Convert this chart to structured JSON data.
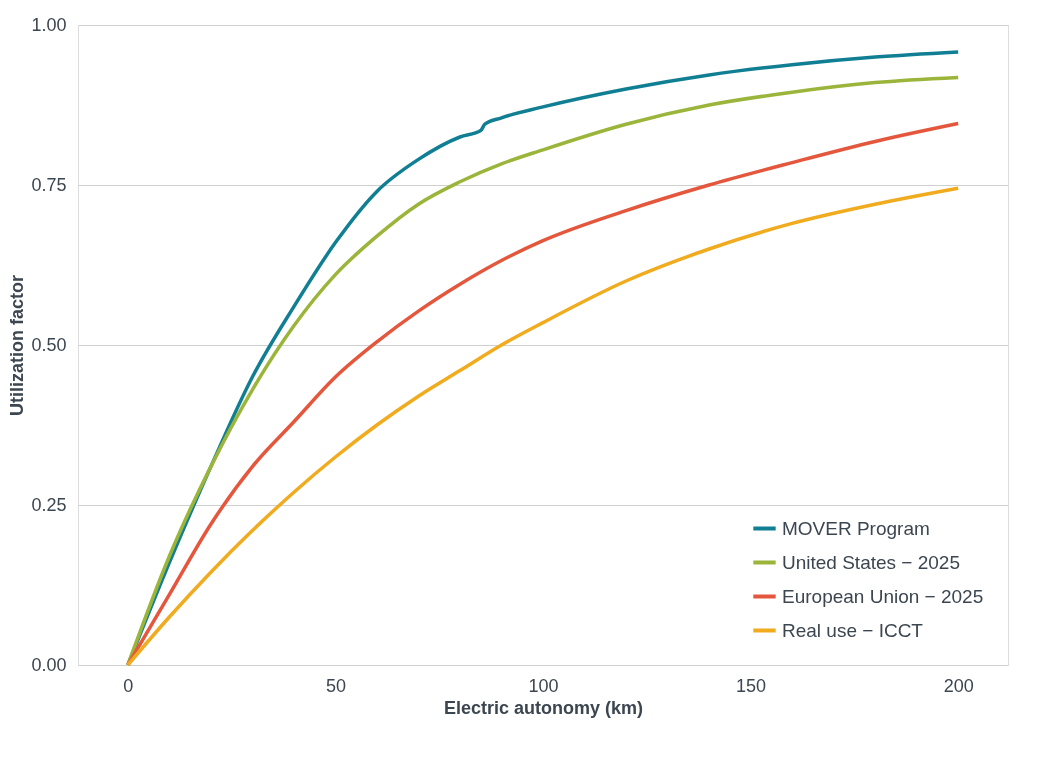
{
  "chart_data": {
    "type": "line",
    "xlabel": "Electric autonomy (km)",
    "ylabel": "Utilization factor",
    "xlim": [
      -12,
      212
    ],
    "xticks": [
      0,
      50,
      100,
      150,
      200
    ],
    "ylim": [
      0,
      1
    ],
    "yticks": [
      {
        "value": 0,
        "label": "0.00"
      },
      {
        "value": 0.25,
        "label": "0.25"
      },
      {
        "value": 0.5,
        "label": "0.50"
      },
      {
        "value": 0.75,
        "label": "0.75"
      },
      {
        "value": 1,
        "label": "1.00"
      }
    ],
    "grid": "y",
    "legend": "bottom right",
    "marker": "none",
    "line_style": "solid",
    "series": [
      {
        "name": "MOVER Program",
        "color": "#117f93",
        "x": [
          0,
          10,
          20,
          30,
          40,
          50,
          60,
          70,
          80,
          85,
          86,
          90,
          100,
          120,
          140,
          160,
          180,
          200
        ],
        "values": [
          0,
          0.16,
          0.31,
          0.45,
          0.56,
          0.66,
          0.74,
          0.79,
          0.825,
          0.835,
          0.845,
          0.855,
          0.872,
          0.9,
          0.922,
          0.938,
          0.95,
          0.958
        ]
      },
      {
        "name": "United States − 2025",
        "color": "#9bb53b",
        "x": [
          0,
          10,
          20,
          30,
          40,
          50,
          60,
          70,
          80,
          90,
          100,
          120,
          140,
          160,
          180,
          200
        ],
        "values": [
          0,
          0.17,
          0.31,
          0.43,
          0.53,
          0.61,
          0.67,
          0.72,
          0.755,
          0.783,
          0.805,
          0.845,
          0.875,
          0.895,
          0.91,
          0.918
        ]
      },
      {
        "name": "European Union − 2025",
        "color": "#e4573d",
        "x": [
          0,
          10,
          20,
          30,
          40,
          50,
          60,
          70,
          80,
          90,
          100,
          120,
          140,
          160,
          180,
          200
        ],
        "values": [
          0,
          0.11,
          0.22,
          0.31,
          0.38,
          0.45,
          0.505,
          0.553,
          0.595,
          0.632,
          0.663,
          0.71,
          0.75,
          0.785,
          0.818,
          0.846
        ]
      },
      {
        "name": "Real use − ICCT",
        "color": "#f0ab1e",
        "x": [
          0,
          10,
          20,
          30,
          40,
          50,
          60,
          70,
          80,
          90,
          100,
          120,
          140,
          160,
          180,
          200
        ],
        "values": [
          0,
          0.075,
          0.145,
          0.21,
          0.27,
          0.325,
          0.375,
          0.42,
          0.46,
          0.5,
          0.535,
          0.6,
          0.65,
          0.69,
          0.72,
          0.745
        ]
      }
    ]
  }
}
